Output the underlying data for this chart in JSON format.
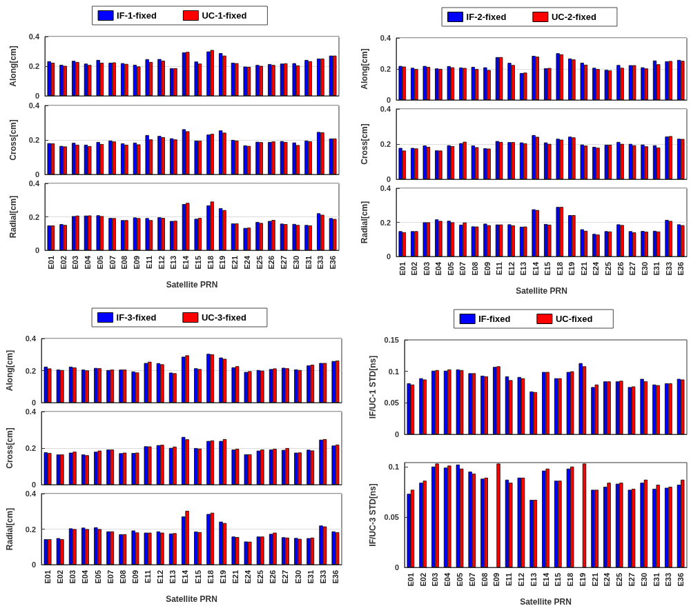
{
  "chart_data": [
    {
      "type": "bar",
      "ylabel": "Along[cm]",
      "categories": [
        null,
        null,
        null,
        null,
        null,
        null,
        null,
        null,
        null,
        null,
        null,
        null,
        null,
        null,
        null,
        null,
        null,
        null,
        null,
        null,
        null,
        null,
        null,
        null
      ],
      "ylim": [
        0,
        0.4
      ],
      "yticks": [
        0,
        0.2,
        0.4
      ],
      "grid": "y",
      "legend": "top",
      "tick_labels": "y",
      "series": [
        {
          "name": "IF-1-fixed",
          "color": "#0000ff",
          "values": [
            0.233,
            0.209,
            0.236,
            0.217,
            0.242,
            0.223,
            0.22,
            0.209,
            0.247,
            0.248,
            0.186,
            0.293,
            0.231,
            0.299,
            0.288,
            0.223,
            0.197,
            0.208,
            0.214,
            0.217,
            0.22,
            0.242,
            0.251,
            0.271
          ]
        },
        {
          "name": "UC-1-fixed",
          "color": "#ff0000",
          "values": [
            0.223,
            0.202,
            0.228,
            0.208,
            0.223,
            0.225,
            0.215,
            0.198,
            0.228,
            0.237,
            0.186,
            0.296,
            0.217,
            0.309,
            0.271,
            0.22,
            0.195,
            0.202,
            0.208,
            0.219,
            0.205,
            0.233,
            0.251,
            0.271
          ]
        }
      ]
    },
    {
      "type": "bar",
      "ylabel": "Cross[cm]",
      "categories": [
        null,
        null,
        null,
        null,
        null,
        null,
        null,
        null,
        null,
        null,
        null,
        null,
        null,
        null,
        null,
        null,
        null,
        null,
        null,
        null,
        null,
        null,
        null,
        null
      ],
      "ylim": [
        0,
        0.4
      ],
      "yticks": [
        0,
        0.2,
        0.4
      ],
      "grid": "y",
      "tick_labels": "y",
      "series": [
        {
          "color": "#0000ff",
          "values": [
            0.181,
            0.165,
            0.183,
            0.172,
            0.188,
            0.196,
            0.18,
            0.184,
            0.228,
            0.223,
            0.209,
            0.262,
            0.196,
            0.231,
            0.255,
            0.2,
            0.168,
            0.189,
            0.188,
            0.193,
            0.185,
            0.196,
            0.246,
            0.208
          ]
        },
        {
          "color": "#ff0000",
          "values": [
            0.18,
            0.162,
            0.172,
            0.164,
            0.176,
            0.191,
            0.172,
            0.174,
            0.203,
            0.216,
            0.203,
            0.25,
            0.195,
            0.235,
            0.242,
            0.196,
            0.165,
            0.187,
            0.191,
            0.188,
            0.17,
            0.192,
            0.244,
            0.208
          ]
        }
      ]
    },
    {
      "type": "bar",
      "ylabel": "Radial[cm]",
      "xlabel": "Satellite PRN",
      "categories": [
        "E01",
        "E02",
        "E03",
        "E04",
        "E05",
        "E07",
        "E08",
        "E09",
        "E11",
        "E12",
        "E13",
        "E14",
        "E15",
        "E18",
        "E19",
        "E21",
        "E24",
        "E25",
        "E26",
        "E27",
        "E30",
        "E31",
        "E33",
        "E36"
      ],
      "ylim": [
        0,
        0.4
      ],
      "yticks": [
        0,
        0.2,
        0.4
      ],
      "grid": "y",
      "series": [
        {
          "color": "#0000ff",
          "values": [
            0.148,
            0.156,
            0.204,
            0.207,
            0.209,
            0.193,
            0.18,
            0.196,
            0.192,
            0.197,
            0.175,
            0.276,
            0.188,
            0.268,
            0.251,
            0.16,
            0.133,
            0.169,
            0.175,
            0.159,
            0.157,
            0.151,
            0.221,
            0.192
          ]
        },
        {
          "color": "#ff0000",
          "values": [
            0.148,
            0.151,
            0.207,
            0.208,
            0.204,
            0.192,
            0.18,
            0.192,
            0.18,
            0.193,
            0.176,
            0.283,
            0.193,
            0.291,
            0.24,
            0.16,
            0.135,
            0.163,
            0.181,
            0.156,
            0.151,
            0.148,
            0.212,
            0.187
          ]
        }
      ]
    },
    {
      "type": "bar",
      "ylabel": "Along[cm]",
      "categories": [
        null,
        null,
        null,
        null,
        null,
        null,
        null,
        null,
        null,
        null,
        null,
        null,
        null,
        null,
        null,
        null,
        null,
        null,
        null,
        null,
        null,
        null,
        null,
        null
      ],
      "ylim": [
        0,
        0.4
      ],
      "yticks": [
        0,
        0.2,
        0.4
      ],
      "grid": "y",
      "legend": "top",
      "tick_labels": "y",
      "series": [
        {
          "name": "IF-2-fixed",
          "color": "#0000ff",
          "values": [
            0.219,
            0.207,
            0.219,
            0.203,
            0.218,
            0.209,
            0.213,
            0.21,
            0.276,
            0.239,
            0.173,
            0.284,
            0.204,
            0.301,
            0.267,
            0.24,
            0.207,
            0.194,
            0.225,
            0.224,
            0.21,
            0.254,
            0.249,
            0.258
          ]
        },
        {
          "name": "UC-2-fixed",
          "color": "#ff0000",
          "values": [
            0.215,
            0.199,
            0.213,
            0.2,
            0.21,
            0.206,
            0.199,
            0.193,
            0.276,
            0.225,
            0.176,
            0.279,
            0.206,
            0.294,
            0.261,
            0.227,
            0.199,
            0.19,
            0.207,
            0.224,
            0.203,
            0.23,
            0.251,
            0.252
          ]
        }
      ]
    },
    {
      "type": "bar",
      "ylabel": "Cross[cm]",
      "categories": [
        null,
        null,
        null,
        null,
        null,
        null,
        null,
        null,
        null,
        null,
        null,
        null,
        null,
        null,
        null,
        null,
        null,
        null,
        null,
        null,
        null,
        null,
        null,
        null
      ],
      "ylim": [
        0,
        0.4
      ],
      "yticks": [
        0,
        0.2,
        0.4
      ],
      "grid": "y",
      "tick_labels": "y",
      "series": [
        {
          "color": "#0000ff",
          "values": [
            0.178,
            0.178,
            0.192,
            0.164,
            0.193,
            0.205,
            0.192,
            0.176,
            0.217,
            0.211,
            0.209,
            0.251,
            0.209,
            0.23,
            0.242,
            0.197,
            0.184,
            0.196,
            0.212,
            0.201,
            0.197,
            0.193,
            0.243,
            0.23
          ]
        },
        {
          "color": "#ff0000",
          "values": [
            0.163,
            0.175,
            0.184,
            0.163,
            0.188,
            0.213,
            0.182,
            0.174,
            0.212,
            0.211,
            0.204,
            0.241,
            0.201,
            0.225,
            0.238,
            0.191,
            0.179,
            0.196,
            0.201,
            0.193,
            0.187,
            0.18,
            0.245,
            0.229
          ]
        }
      ]
    },
    {
      "type": "bar",
      "ylabel": "Radial[cm]",
      "xlabel": "Satellite PRN",
      "categories": [
        "E01",
        "E02",
        "E03",
        "E04",
        "E05",
        "E07",
        "E08",
        "E09",
        "E11",
        "E12",
        "E13",
        "E14",
        "E15",
        "E18",
        "E19",
        "E21",
        "E24",
        "E25",
        "E26",
        "E27",
        "E30",
        "E31",
        "E33",
        "E36"
      ],
      "ylim": [
        0,
        0.4
      ],
      "yticks": [
        0,
        0.2,
        0.4
      ],
      "grid": "y",
      "series": [
        {
          "color": "#0000ff",
          "values": [
            0.148,
            0.148,
            0.2,
            0.217,
            0.209,
            0.186,
            0.176,
            0.192,
            0.187,
            0.188,
            0.174,
            0.276,
            0.19,
            0.29,
            0.242,
            0.159,
            0.132,
            0.148,
            0.188,
            0.148,
            0.149,
            0.15,
            0.214,
            0.188
          ]
        },
        {
          "color": "#ff0000",
          "values": [
            0.142,
            0.148,
            0.2,
            0.208,
            0.2,
            0.199,
            0.175,
            0.183,
            0.187,
            0.182,
            0.175,
            0.272,
            0.186,
            0.29,
            0.242,
            0.15,
            0.128,
            0.146,
            0.184,
            0.141,
            0.145,
            0.146,
            0.208,
            0.183
          ]
        }
      ]
    },
    {
      "type": "bar",
      "ylabel": "Along[cm]",
      "categories": [
        null,
        null,
        null,
        null,
        null,
        null,
        null,
        null,
        null,
        null,
        null,
        null,
        null,
        null,
        null,
        null,
        null,
        null,
        null,
        null,
        null,
        null,
        null,
        null
      ],
      "ylim": [
        0,
        0.4
      ],
      "yticks": [
        0,
        0.2,
        0.4
      ],
      "grid": "y",
      "legend": "top",
      "tick_labels": "y",
      "series": [
        {
          "name": "IF-3-fixed",
          "color": "#0000ff",
          "values": [
            0.224,
            0.206,
            0.224,
            0.206,
            0.216,
            0.203,
            0.206,
            0.194,
            0.247,
            0.246,
            0.187,
            0.286,
            0.214,
            0.304,
            0.281,
            0.22,
            0.191,
            0.203,
            0.209,
            0.217,
            0.207,
            0.232,
            0.247,
            0.259
          ]
        },
        {
          "name": "UC-3-fixed",
          "color": "#ff0000",
          "values": [
            0.213,
            0.203,
            0.219,
            0.201,
            0.214,
            0.206,
            0.206,
            0.188,
            0.255,
            0.239,
            0.183,
            0.295,
            0.209,
            0.301,
            0.273,
            0.227,
            0.196,
            0.199,
            0.213,
            0.214,
            0.203,
            0.236,
            0.247,
            0.262
          ]
        }
      ]
    },
    {
      "type": "bar",
      "ylabel": "Cross[cm]",
      "categories": [
        null,
        null,
        null,
        null,
        null,
        null,
        null,
        null,
        null,
        null,
        null,
        null,
        null,
        null,
        null,
        null,
        null,
        null,
        null,
        null,
        null,
        null,
        null,
        null
      ],
      "ylim": [
        0,
        0.4
      ],
      "yticks": [
        0,
        0.2,
        0.4
      ],
      "grid": "y",
      "tick_labels": "y",
      "series": [
        {
          "color": "#0000ff",
          "values": [
            0.177,
            0.165,
            0.175,
            0.165,
            0.18,
            0.192,
            0.172,
            0.173,
            0.21,
            0.216,
            0.201,
            0.261,
            0.2,
            0.239,
            0.239,
            0.192,
            0.166,
            0.186,
            0.192,
            0.19,
            0.175,
            0.191,
            0.246,
            0.214
          ]
        },
        {
          "color": "#ff0000",
          "values": [
            0.173,
            0.165,
            0.18,
            0.161,
            0.186,
            0.192,
            0.175,
            0.175,
            0.209,
            0.218,
            0.208,
            0.248,
            0.197,
            0.242,
            0.249,
            0.196,
            0.166,
            0.192,
            0.196,
            0.2,
            0.176,
            0.187,
            0.249,
            0.219
          ]
        }
      ]
    },
    {
      "type": "bar",
      "ylabel": "Radial[cm]",
      "xlabel": "Satellite PRN",
      "categories": [
        "E01",
        "E02",
        "E03",
        "E04",
        "E05",
        "E07",
        "E08",
        "E09",
        "E11",
        "E12",
        "E13",
        "E14",
        "E15",
        "E18",
        "E19",
        "E21",
        "E24",
        "E25",
        "E26",
        "E27",
        "E30",
        "E31",
        "E33",
        "E36"
      ],
      "ylim": [
        0,
        0.4
      ],
      "yticks": [
        0,
        0.2,
        0.4
      ],
      "grid": "y",
      "series": [
        {
          "color": "#0000ff",
          "values": [
            0.143,
            0.149,
            0.204,
            0.208,
            0.21,
            0.187,
            0.171,
            0.192,
            0.18,
            0.187,
            0.175,
            0.271,
            0.186,
            0.285,
            0.242,
            0.158,
            0.13,
            0.158,
            0.173,
            0.154,
            0.15,
            0.149,
            0.22,
            0.187
          ]
        },
        {
          "color": "#ff0000",
          "values": [
            0.143,
            0.143,
            0.2,
            0.2,
            0.2,
            0.187,
            0.171,
            0.181,
            0.18,
            0.18,
            0.177,
            0.303,
            0.183,
            0.292,
            0.234,
            0.155,
            0.129,
            0.158,
            0.18,
            0.152,
            0.145,
            0.152,
            0.215,
            0.182
          ]
        }
      ]
    },
    {
      "type": "bar",
      "ylabel": "IF/UC-1 STD[ns]",
      "categories": [
        null,
        null,
        null,
        null,
        null,
        null,
        null,
        null,
        null,
        null,
        null,
        null,
        null,
        null,
        null,
        null,
        null,
        null,
        null,
        null,
        null,
        null,
        null
      ],
      "ylim": [
        0,
        0.15
      ],
      "yticks": [
        0,
        0.05,
        0.1,
        0.15
      ],
      "legend": "top",
      "tick_labels": "y",
      "series": [
        {
          "name": "IF-fixed",
          "color": "#0000ff",
          "values": [
            0.081,
            0.089,
            0.101,
            0.101,
            0.103,
            0.097,
            0.093,
            0.107,
            0.092,
            0.091,
            0.068,
            0.099,
            0.089,
            0.099,
            0.113,
            0.075,
            0.084,
            0.084,
            0.075,
            0.088,
            0.079,
            0.081,
            0.088
          ]
        },
        {
          "name": "UC-fixed",
          "color": "#ff0000",
          "values": [
            0.079,
            0.087,
            0.102,
            0.103,
            0.102,
            0.097,
            0.092,
            0.108,
            0.086,
            0.089,
            0.067,
            0.099,
            0.089,
            0.1,
            0.108,
            0.079,
            0.084,
            0.085,
            0.076,
            0.084,
            0.078,
            0.081,
            0.087
          ]
        }
      ]
    },
    {
      "type": "bar",
      "ylabel": "IF/UC-3 STD[ns]",
      "xlabel": "Satellite PRN",
      "categories": [
        "E01",
        "E02",
        "E03",
        "E04",
        "E05",
        "E07",
        "E08",
        "E09",
        "E11",
        "E12",
        "E13",
        "E14",
        "E15",
        "E18",
        "E19",
        "E21",
        "E24",
        "E25",
        "E27",
        "E30",
        "E31",
        "E33",
        "E36"
      ],
      "ylim": [
        0,
        0.104
      ],
      "yticks": [
        0,
        0.05,
        0.1
      ],
      "series": [
        {
          "color": "#0000ff",
          "values": [
            0.073,
            0.084,
            0.1,
            0.099,
            0.102,
            0.095,
            0.088,
            null,
            0.087,
            0.089,
            0.067,
            0.096,
            0.086,
            0.098,
            null,
            0.077,
            0.08,
            0.083,
            0.077,
            0.084,
            0.078,
            0.079,
            0.082
          ]
        },
        {
          "color": "#ff0000",
          "values": [
            0.077,
            0.086,
            0.103,
            0.101,
            0.098,
            0.093,
            0.089,
            0.103,
            0.084,
            0.089,
            0.067,
            0.098,
            0.086,
            0.1,
            0.103,
            0.077,
            0.084,
            0.084,
            0.078,
            0.087,
            0.082,
            0.08,
            0.087
          ]
        }
      ]
    }
  ]
}
